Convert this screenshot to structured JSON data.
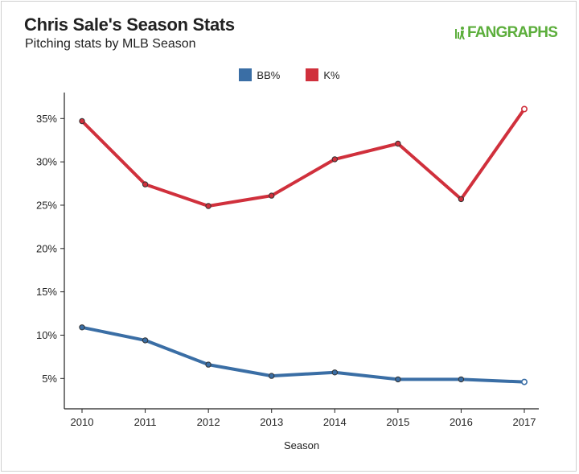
{
  "header": {
    "title": "Chris Sale's Season Stats",
    "subtitle": "Pitching stats by MLB Season",
    "logo_text": "FANGRAPHS"
  },
  "colors": {
    "bb": "#3a6ea5",
    "k": "#d0303c",
    "logo": "#5cae3c"
  },
  "chart_data": {
    "type": "line",
    "title": "Chris Sale's Season Stats",
    "subtitle": "Pitching stats by MLB Season",
    "xlabel": "Season",
    "ylabel": "",
    "x": [
      "2010",
      "2011",
      "2012",
      "2013",
      "2014",
      "2015",
      "2016",
      "2017"
    ],
    "y_ticks": [
      "5%",
      "10%",
      "15%",
      "20%",
      "25%",
      "30%",
      "35%"
    ],
    "ylim": [
      1.5,
      38
    ],
    "grid": false,
    "legend_position": "top-center",
    "series": [
      {
        "name": "BB%",
        "color": "#3a6ea5",
        "values": [
          10.9,
          9.4,
          6.6,
          5.3,
          5.7,
          4.9,
          4.9,
          4.6
        ],
        "last_point_hollow": true
      },
      {
        "name": "K%",
        "color": "#d0303c",
        "values": [
          34.7,
          27.4,
          24.9,
          26.1,
          30.3,
          32.1,
          25.7,
          36.1
        ],
        "last_point_hollow": true
      }
    ]
  }
}
